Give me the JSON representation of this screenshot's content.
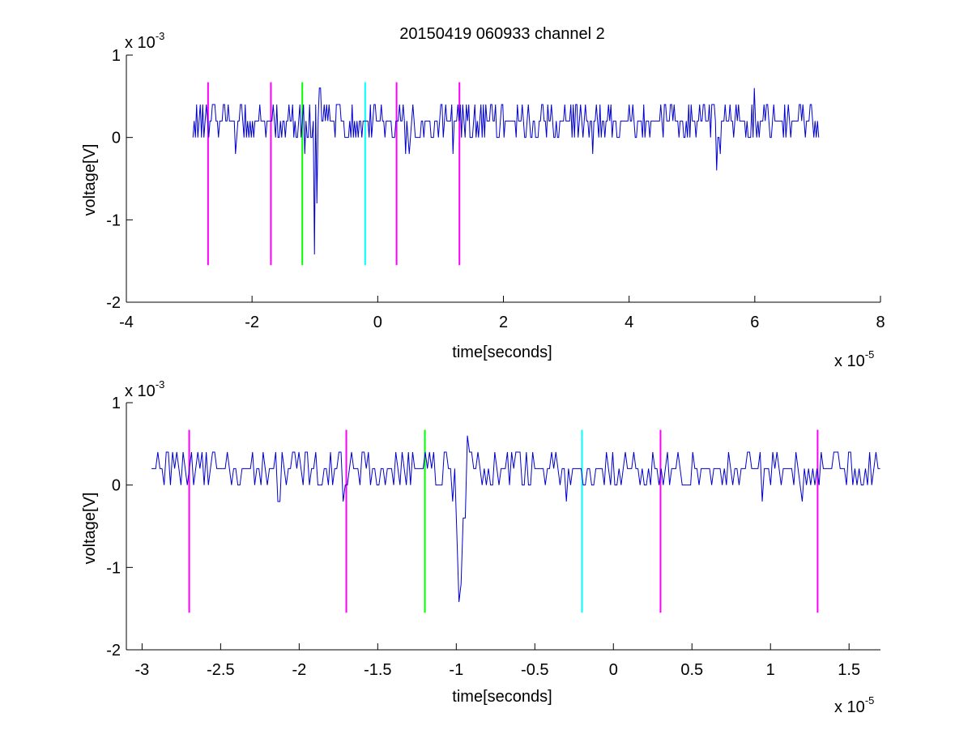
{
  "figure": {
    "title": "20150419 060933 channel 2"
  },
  "chart_data": [
    {
      "type": "line",
      "title": "20150419 060933 channel 2",
      "xlabel": "time[seconds]",
      "ylabel": "voltage[V]",
      "x_multiplier_label": "x 10",
      "x_multiplier_exp": "-5",
      "y_multiplier_label": "x 10",
      "y_multiplier_exp": "-3",
      "xlim": [
        -4,
        8
      ],
      "ylim": [
        -2,
        1
      ],
      "xticks": [
        -4,
        -2,
        0,
        2,
        4,
        6,
        8
      ],
      "xtick_labels": [
        "-4",
        "-2",
        "0",
        "2",
        "4",
        "6",
        "8"
      ],
      "yticks": [
        -2,
        -1,
        0,
        1
      ],
      "ytick_labels": [
        "-2",
        "-1",
        "0",
        "1"
      ],
      "grid": false,
      "series": [
        {
          "color": "#0000cc",
          "x_range": [
            -2.94,
            7.02
          ],
          "baseline": 0.2,
          "levels": [
            0.0,
            0.2,
            0.4
          ],
          "spikes": [
            {
              "x": -1.0,
              "y": -1.42
            },
            {
              "x": -0.97,
              "y": -0.8
            },
            {
              "x": -0.92,
              "y": 0.6
            },
            {
              "x": 5.4,
              "y": -0.4
            },
            {
              "x": 5.45,
              "y": -0.2
            },
            {
              "x": 6.0,
              "y": 0.6
            }
          ]
        }
      ],
      "markers": [
        {
          "x": -2.7,
          "color": "#ff00ff",
          "y_range": [
            -1.55,
            0.67
          ]
        },
        {
          "x": -1.7,
          "color": "#ff00ff",
          "y_range": [
            -1.55,
            0.67
          ]
        },
        {
          "x": -1.2,
          "color": "#00ff00",
          "y_range": [
            -1.55,
            0.67
          ]
        },
        {
          "x": -0.2,
          "color": "#00ffff",
          "y_range": [
            -1.55,
            0.67
          ]
        },
        {
          "x": 0.3,
          "color": "#ff00ff",
          "y_range": [
            -1.55,
            0.67
          ]
        },
        {
          "x": 1.3,
          "color": "#ff00ff",
          "y_range": [
            -1.55,
            0.67
          ]
        }
      ]
    },
    {
      "type": "line",
      "xlabel": "time[seconds]",
      "ylabel": "voltage[V]",
      "x_multiplier_label": "x 10",
      "x_multiplier_exp": "-5",
      "y_multiplier_label": "x 10",
      "y_multiplier_exp": "-3",
      "xlim": [
        -3.1,
        1.7
      ],
      "ylim": [
        -2,
        1
      ],
      "xticks": [
        -3,
        -2.5,
        -2,
        -1.5,
        -1,
        -0.5,
        0,
        0.5,
        1,
        1.5
      ],
      "xtick_labels": [
        "-3",
        "-2.5",
        "-2",
        "-1.5",
        "-1",
        "-0.5",
        "0",
        "0.5",
        "1",
        "1.5"
      ],
      "yticks": [
        -2,
        -1,
        0,
        1
      ],
      "ytick_labels": [
        "-2",
        "-1",
        "0",
        "1"
      ],
      "grid": false,
      "series": [
        {
          "color": "#0000cc",
          "x_range": [
            -2.94,
            1.7
          ],
          "baseline": 0.2,
          "levels": [
            0.0,
            0.2,
            0.4
          ],
          "spikes": [
            {
              "x": -2.14,
              "y": -0.2
            },
            {
              "x": -2.12,
              "y": -0.2
            },
            {
              "x": -1.72,
              "y": -0.2
            },
            {
              "x": -1.02,
              "y": -0.2
            },
            {
              "x": -1.0,
              "y": -0.6
            },
            {
              "x": -0.98,
              "y": -1.42
            },
            {
              "x": -0.97,
              "y": -1.2
            },
            {
              "x": -0.95,
              "y": -0.4
            },
            {
              "x": -0.93,
              "y": 0.6
            },
            {
              "x": -0.91,
              "y": 0.4
            },
            {
              "x": -0.3,
              "y": -0.2
            },
            {
              "x": 0.95,
              "y": -0.2
            }
          ]
        }
      ],
      "markers": [
        {
          "x": -2.7,
          "color": "#ff00ff",
          "y_range": [
            -1.55,
            0.67
          ]
        },
        {
          "x": -1.7,
          "color": "#ff00ff",
          "y_range": [
            -1.55,
            0.67
          ]
        },
        {
          "x": -1.2,
          "color": "#00ff00",
          "y_range": [
            -1.55,
            0.67
          ]
        },
        {
          "x": -0.2,
          "color": "#00ffff",
          "y_range": [
            -1.55,
            0.67
          ]
        },
        {
          "x": 0.3,
          "color": "#ff00ff",
          "y_range": [
            -1.55,
            0.67
          ]
        },
        {
          "x": 1.3,
          "color": "#ff00ff",
          "y_range": [
            -1.55,
            0.67
          ]
        }
      ]
    }
  ]
}
